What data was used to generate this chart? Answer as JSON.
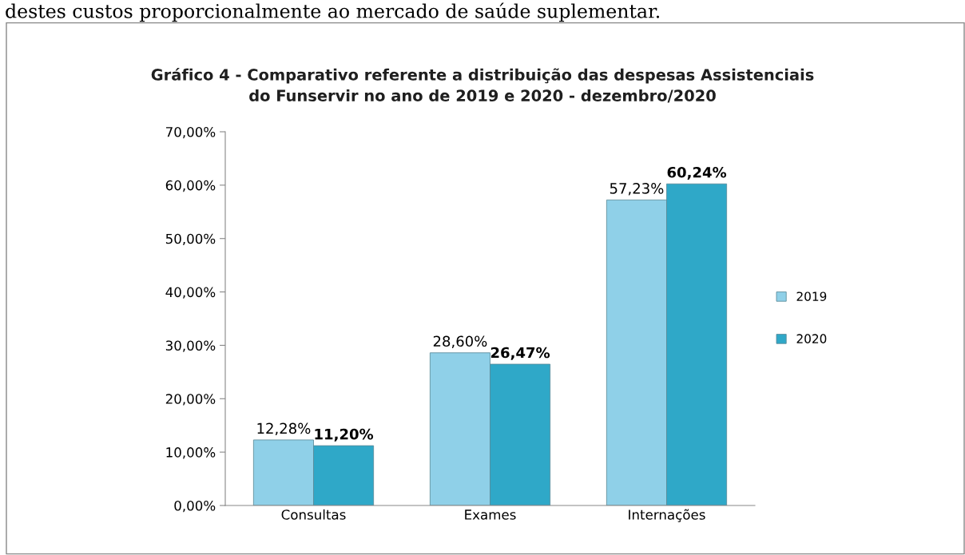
{
  "chart_data": {
    "type": "bar",
    "title": "Gráfico 4 - Comparativo referente a distribuição das despesas Assistenciais\ndo Funservir no ano de 2019 e 2020 - dezembro/2020",
    "annotations": [
      "destes custos proporcionalmente ao mercado de saúde suplementar."
    ],
    "categories": [
      "Consultas",
      "Exames",
      "Internações"
    ],
    "series": [
      {
        "name": "2019",
        "color": "#8fd0e8",
        "values": [
          12.28,
          28.6,
          57.23
        ],
        "value_labels": [
          "12,28%",
          "28,60%",
          "57,23%"
        ]
      },
      {
        "name": "2020",
        "color": "#2fa8c8",
        "values": [
          11.2,
          26.47,
          60.24
        ],
        "value_labels": [
          "11,20%",
          "26,47%",
          "60,24%"
        ]
      }
    ],
    "ylim": [
      0,
      70
    ],
    "yticks": [
      {
        "value": 0,
        "label": "0,00%"
      },
      {
        "value": 10,
        "label": "10,00%"
      },
      {
        "value": 20,
        "label": "20,00%"
      },
      {
        "value": 30,
        "label": "30,00%"
      },
      {
        "value": 40,
        "label": "40,00%"
      },
      {
        "value": 50,
        "label": "50,00%"
      },
      {
        "value": 60,
        "label": "60,00%"
      },
      {
        "value": 70,
        "label": "70,00%"
      }
    ],
    "grid": false,
    "legend": "right"
  }
}
